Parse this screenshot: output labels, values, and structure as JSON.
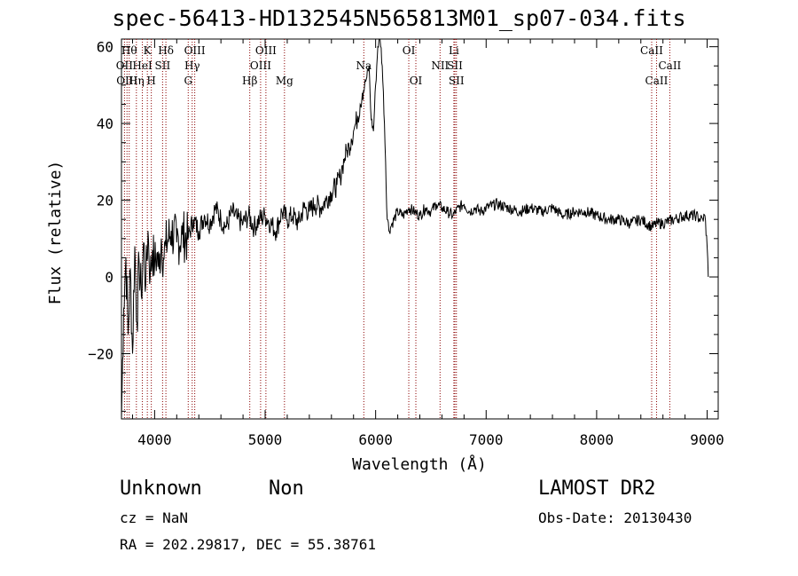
{
  "title": "spec-56413-HD132545N565813M01_sp07-034.fits",
  "info": {
    "class": "Unknown",
    "subclass": "Non",
    "cz": "cz = NaN",
    "radec": "RA = 202.29817, DEC =  55.38761",
    "survey": "LAMOST DR2",
    "obsdate": "Obs-Date: 20130430"
  },
  "chart_data": {
    "type": "line",
    "xlabel": "Wavelength (Å)",
    "ylabel": "Flux (relative)",
    "xlim": [
      3700,
      9100
    ],
    "ylim": [
      -37,
      62
    ],
    "xticks": [
      4000,
      5000,
      6000,
      7000,
      8000,
      9000
    ],
    "yticks": [
      -20,
      0,
      20,
      40,
      60
    ],
    "grid": false,
    "line_color": "#000000",
    "marker_color": "#8b0000",
    "series": [
      {
        "x": [
          3700,
          3720,
          3740,
          3760,
          3780,
          3800,
          3820,
          3840,
          3860,
          3880,
          3900,
          3920,
          3940,
          3960,
          3980,
          4000,
          4020,
          4040,
          4060,
          4080,
          4100,
          4150,
          4200,
          4250,
          4300,
          4350,
          4400,
          4450,
          4500,
          4550,
          4600,
          4650,
          4700,
          4750,
          4800,
          4850,
          4900,
          4950,
          5000,
          5050,
          5100,
          5150,
          5200,
          5250,
          5300,
          5350,
          5400,
          5450,
          5500,
          5550,
          5600,
          5650,
          5680,
          5700,
          5720,
          5740,
          5760,
          5780,
          5800,
          5820,
          5840,
          5860,
          5880,
          5900,
          5920,
          5940,
          5960,
          5980,
          6000,
          6020,
          6040,
          6060,
          6080,
          6090,
          6100,
          6120,
          6150,
          6200,
          6250,
          6300,
          6350,
          6400,
          6450,
          6500,
          6550,
          6600,
          6650,
          6700,
          6750,
          6800,
          6850,
          6900,
          6950,
          7000,
          7100,
          7200,
          7300,
          7400,
          7500,
          7600,
          7700,
          7800,
          7900,
          8000,
          8100,
          8200,
          8300,
          8400,
          8500,
          8550,
          8600,
          8700,
          8800,
          8900,
          8940,
          8960,
          8980,
          9000,
          9010
        ],
        "y": [
          -37,
          -8,
          5,
          -15,
          2,
          -20,
          8,
          -12,
          4,
          -5,
          9,
          -2,
          12,
          0,
          7,
          3,
          6,
          2,
          10,
          5,
          8,
          12,
          9,
          11,
          10,
          15,
          12,
          16,
          14,
          18,
          15,
          13,
          17,
          15,
          14,
          16,
          13,
          15,
          16,
          14,
          12,
          17,
          15,
          16,
          14,
          18,
          17,
          19,
          18,
          20,
          22,
          24,
          26,
          29,
          31,
          33,
          34,
          36,
          38,
          40,
          42,
          45,
          48,
          50,
          52,
          55,
          41,
          38,
          50,
          60,
          63,
          55,
          40,
          30,
          18,
          12,
          14,
          17,
          16,
          18,
          17,
          16,
          18,
          17,
          19,
          18,
          17,
          16,
          18,
          19,
          17,
          18,
          17,
          18,
          19,
          18,
          17,
          18,
          17,
          18,
          16,
          17,
          17,
          16,
          15,
          15,
          14,
          15,
          13,
          14,
          14,
          15,
          16,
          16,
          15,
          15,
          16,
          8,
          0
        ]
      }
    ],
    "line_markers": [
      {
        "wl": 3727,
        "label": "OII",
        "row": 2
      },
      {
        "wl": 3750,
        "label": "OIII",
        "row": 3
      },
      {
        "wl": 3770,
        "label": "Hθ",
        "row": 1
      },
      {
        "wl": 3835,
        "label": "Hη",
        "row": 3
      },
      {
        "wl": 3889,
        "label": "HeI",
        "row": 2
      },
      {
        "wl": 3934,
        "label": "K",
        "row": 1
      },
      {
        "wl": 3970,
        "label": "H",
        "row": 3
      },
      {
        "wl": 4072,
        "label": "SII",
        "row": 2
      },
      {
        "wl": 4102,
        "label": "Hδ",
        "row": 1
      },
      {
        "wl": 4304,
        "label": "G",
        "row": 3
      },
      {
        "wl": 4340,
        "label": "Hγ",
        "row": 2
      },
      {
        "wl": 4363,
        "label": "OIII",
        "row": 1
      },
      {
        "wl": 4861,
        "label": "Hβ",
        "row": 3
      },
      {
        "wl": 4959,
        "label": "OIII",
        "row": 2
      },
      {
        "wl": 5007,
        "label": "OIII",
        "row": 1
      },
      {
        "wl": 5175,
        "label": "Mg",
        "row": 3
      },
      {
        "wl": 5893,
        "label": "Na",
        "row": 2
      },
      {
        "wl": 6300,
        "label": "OI",
        "row": 1
      },
      {
        "wl": 6364,
        "label": "OI",
        "row": 3
      },
      {
        "wl": 6583,
        "label": "NII",
        "row": 2
      },
      {
        "wl": 6708,
        "label": "Li",
        "row": 1
      },
      {
        "wl": 6717,
        "label": "SII",
        "row": 2
      },
      {
        "wl": 6731,
        "label": "SII",
        "row": 3
      },
      {
        "wl": 8498,
        "label": "CaII",
        "row": 1
      },
      {
        "wl": 8542,
        "label": "CaII",
        "row": 3
      },
      {
        "wl": 8662,
        "label": "CaII",
        "row": 2
      }
    ]
  }
}
